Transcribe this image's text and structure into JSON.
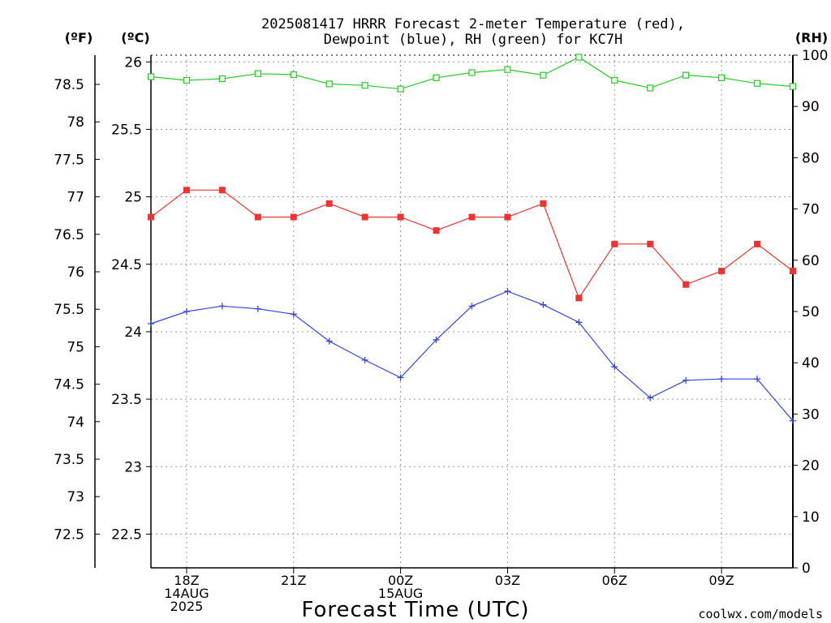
{
  "chart_data": {
    "type": "line",
    "title": "2025081417 HRRR Forecast 2-meter Temperature (red),",
    "subtitle": "Dewpoint (blue), RH (green) for KC7H",
    "xlabel": "Forecast Time (UTC)",
    "credit": "coolwx.com/models",
    "left_unit_f": "(ºF)",
    "left_unit_c": "(ºC)",
    "right_unit": "(RH)",
    "hours": [
      17,
      18,
      19,
      20,
      21,
      22,
      23,
      0,
      1,
      2,
      3,
      4,
      5,
      6,
      7,
      8,
      9,
      10,
      11
    ],
    "x_ticks": [
      {
        "hour_index": 1,
        "lines": [
          "18Z",
          "14AUG",
          "2025"
        ]
      },
      {
        "hour_index": 4,
        "lines": [
          "21Z"
        ]
      },
      {
        "hour_index": 7,
        "lines": [
          "00Z",
          "15AUG"
        ]
      },
      {
        "hour_index": 10,
        "lines": [
          "03Z"
        ]
      },
      {
        "hour_index": 13,
        "lines": [
          "06Z"
        ]
      },
      {
        "hour_index": 16,
        "lines": [
          "09Z"
        ]
      }
    ],
    "c_ticks": [
      "22.5",
      "23",
      "23.5",
      "24",
      "24.5",
      "25",
      "25.5",
      "26"
    ],
    "f_ticks": [
      "72.5",
      "73",
      "73.5",
      "74",
      "74.5",
      "75",
      "75.5",
      "76",
      "76.5",
      "77",
      "77.5",
      "78",
      "78.5"
    ],
    "rh_ticks": [
      "0",
      "10",
      "20",
      "30",
      "40",
      "50",
      "60",
      "70",
      "80",
      "90",
      "100"
    ],
    "ylim_c": [
      22.25,
      26.05
    ],
    "ylim_rh": [
      0,
      100
    ],
    "colors": {
      "temp": "#ee3333",
      "dewpoint": "#3344ee",
      "rh": "#22cc22",
      "credit": "#dd2222"
    },
    "series": [
      {
        "name": "Temperature",
        "axis": "c",
        "marker": "square-filled",
        "values": [
          24.85,
          25.05,
          25.05,
          24.85,
          24.85,
          24.95,
          24.85,
          24.85,
          24.75,
          24.85,
          24.85,
          24.95,
          24.25,
          24.65,
          24.65,
          24.35,
          24.45,
          24.65,
          24.45
        ]
      },
      {
        "name": "Dewpoint",
        "axis": "c",
        "marker": "plus",
        "values": [
          24.06,
          24.15,
          24.19,
          24.17,
          24.13,
          23.93,
          23.79,
          23.66,
          23.94,
          24.19,
          24.3,
          24.2,
          24.07,
          23.74,
          23.51,
          23.64,
          23.65,
          23.65,
          23.34
        ]
      },
      {
        "name": "RH",
        "axis": "rh",
        "marker": "square-open",
        "values": [
          95.8,
          95.1,
          95.4,
          96.4,
          96.2,
          94.4,
          94.1,
          93.4,
          95.6,
          96.6,
          97.2,
          96.1,
          99.6,
          95.1,
          93.6,
          96.1,
          95.6,
          94.5,
          93.9
        ]
      }
    ]
  }
}
